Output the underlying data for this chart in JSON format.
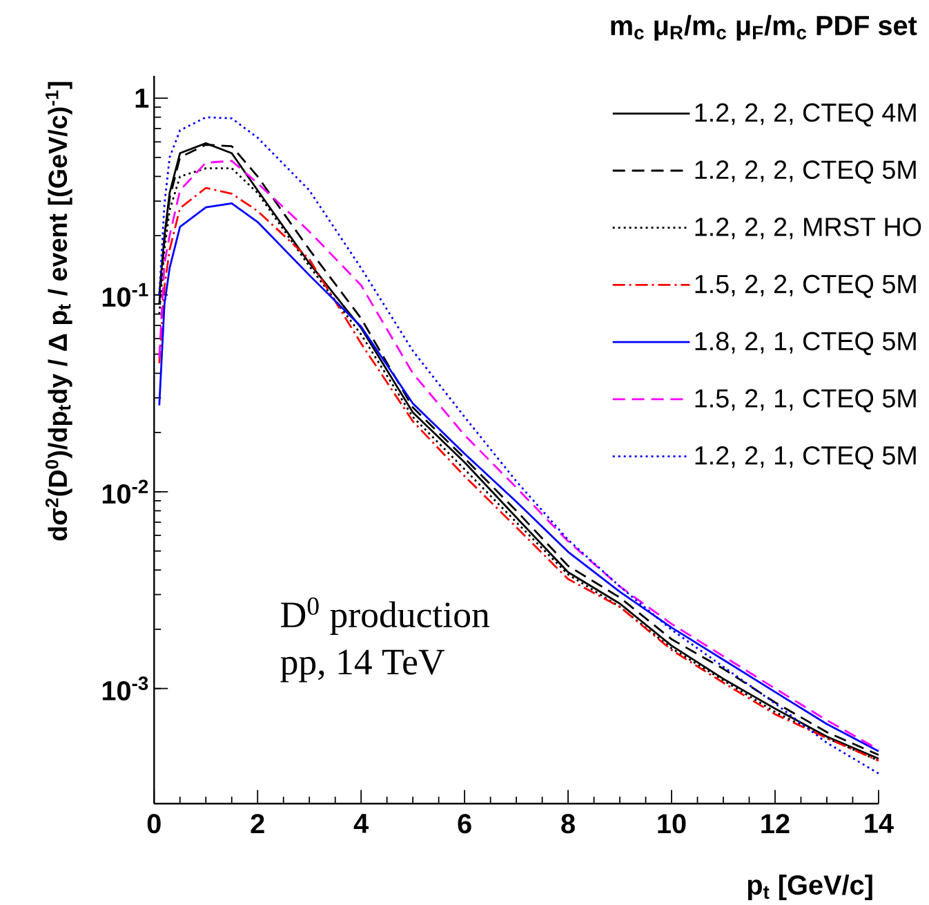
{
  "chart_data": {
    "type": "line",
    "ylabel": "dσ$^{2}$(D$^{0}$)/dp$_{t}$dy / Δ p$_{t}$ / event [(GeV/c)$^{-1}$]",
    "xlabel": "p$_{t}$ [GeV/c]",
    "legend_title": "m$_{c}$  μ$_{R}$/m$_{c}$  μ$_{F}$/m$_{c}$  PDF set",
    "annotations": [
      "D$^{0}$ production",
      "pp, 14 TeV"
    ],
    "log": "y",
    "legend": "top right",
    "grid": false,
    "xlim": [
      0,
      14
    ],
    "xticks": [
      0,
      2,
      4,
      6,
      8,
      10,
      12,
      14
    ],
    "ylim": [
      0.00026,
      1.3
    ],
    "yticks": [
      {
        "value": 0.001,
        "label": "10$^{-3}$"
      },
      {
        "value": 0.01,
        "label": "10$^{-2}$"
      },
      {
        "value": 0.1,
        "label": "10$^{-1}$"
      },
      {
        "value": 1,
        "label": "1"
      }
    ],
    "x": [
      0.1,
      0.2,
      0.3,
      0.5,
      1,
      1.5,
      2,
      3,
      4,
      5,
      6,
      7,
      8,
      9,
      10,
      11,
      12,
      13,
      14
    ],
    "series": [
      {
        "name": "1.2, 2, 2, CTEQ 4M",
        "color": "#000000",
        "line_style": "solid",
        "values": [
          0.1,
          0.2,
          0.33,
          0.525,
          0.59,
          0.525,
          0.34,
          0.145,
          0.068,
          0.0253,
          0.0141,
          0.0074,
          0.0039,
          0.0027,
          0.00165,
          0.00112,
          0.00079,
          0.00057,
          0.00044
        ]
      },
      {
        "name": "1.2, 2, 2, CTEQ 5M",
        "color": "#000000",
        "line_style": "dashed",
        "values": [
          0.09,
          0.19,
          0.31,
          0.5,
          0.58,
          0.57,
          0.4,
          0.17,
          0.076,
          0.0268,
          0.0148,
          0.008,
          0.0042,
          0.0029,
          0.00178,
          0.00126,
          0.00085,
          0.0006,
          0.00046
        ]
      },
      {
        "name": "1.2, 2, 2, MRST HO",
        "color": "#000000",
        "line_style": "dotted",
        "values": [
          0.08,
          0.17,
          0.27,
          0.4,
          0.44,
          0.44,
          0.33,
          0.14,
          0.063,
          0.024,
          0.013,
          0.007,
          0.0038,
          0.0026,
          0.0016,
          0.0011,
          0.00076,
          0.00056,
          0.00043
        ]
      },
      {
        "name": "1.5, 2, 2, CTEQ 5M",
        "color": "#ff0000",
        "line_style": "dashdot",
        "values": [
          0.045,
          0.11,
          0.17,
          0.276,
          0.35,
          0.327,
          0.267,
          0.152,
          0.0567,
          0.0228,
          0.012,
          0.0066,
          0.0036,
          0.0026,
          0.00157,
          0.00107,
          0.00074,
          0.00056,
          0.00043
        ]
      },
      {
        "name": "1.8, 2, 1, CTEQ 5M",
        "color": "#0000ff",
        "line_style": "solid",
        "values": [
          0.0275,
          0.09,
          0.137,
          0.222,
          0.279,
          0.292,
          0.235,
          0.126,
          0.069,
          0.0281,
          0.0156,
          0.0089,
          0.00495,
          0.0031,
          0.00204,
          0.0014,
          0.00096,
          0.00066,
          0.00048
        ]
      },
      {
        "name": "1.5, 2, 1, CTEQ 5M",
        "color": "#ff00ff",
        "line_style": "dashed",
        "values": [
          0.048,
          0.145,
          0.2,
          0.34,
          0.47,
          0.48,
          0.37,
          0.21,
          0.112,
          0.04,
          0.0194,
          0.0105,
          0.0056,
          0.0033,
          0.00213,
          0.00146,
          0.001,
          0.00069,
          0.00049
        ]
      },
      {
        "name": "1.2, 2, 1, CTEQ 5M",
        "color": "#0000ff",
        "line_style": "dotted",
        "values": [
          0.1,
          0.29,
          0.5,
          0.686,
          0.8,
          0.79,
          0.63,
          0.34,
          0.137,
          0.052,
          0.024,
          0.0113,
          0.0057,
          0.0033,
          0.00199,
          0.00129,
          0.00084,
          0.00053,
          0.00037
        ]
      }
    ]
  }
}
